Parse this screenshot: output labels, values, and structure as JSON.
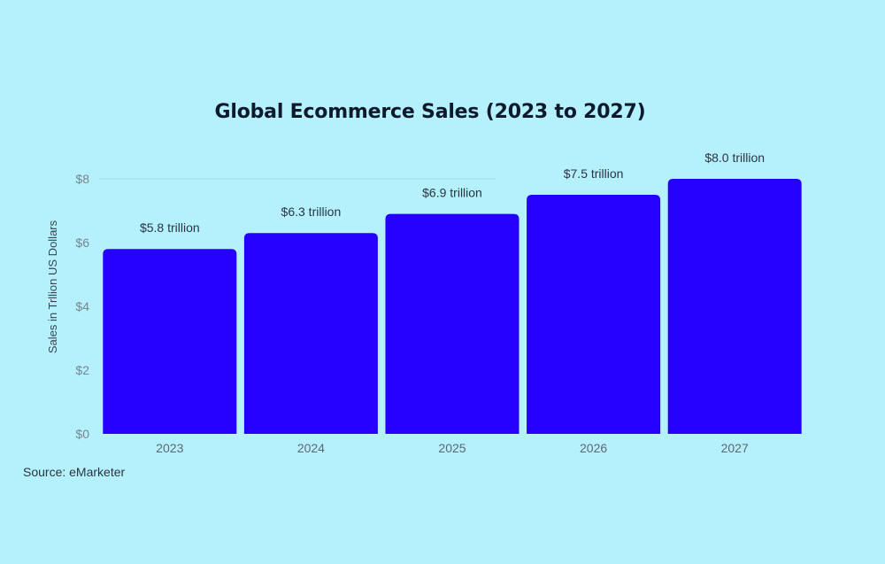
{
  "chart_data": {
    "type": "bar",
    "title": "Global Ecommerce Sales (2023 to 2027)",
    "xlabel": "",
    "ylabel": "Sales in Trllion US Dollars",
    "categories": [
      "2023",
      "2024",
      "2025",
      "2026",
      "2027"
    ],
    "values": [
      5.8,
      6.3,
      6.9,
      7.5,
      8.0
    ],
    "data_labels": [
      "$5.8 trillion",
      "$6.3 trillion",
      "$6.9 trillion",
      "$7.5 trillion",
      "$8.0 trillion"
    ],
    "y_ticks": [
      0,
      2,
      4,
      6,
      8
    ],
    "y_tick_labels": [
      "$0",
      "$2",
      "$4",
      "$6",
      "$8"
    ],
    "ylim": [
      0,
      8
    ],
    "grid": false,
    "legend": "none",
    "bar_color": "#2600ff"
  },
  "source": "Source: eMarketer",
  "colors": {
    "background": "#b5f0fd",
    "bar": "#2600ff",
    "title": "#0e1a2b"
  }
}
